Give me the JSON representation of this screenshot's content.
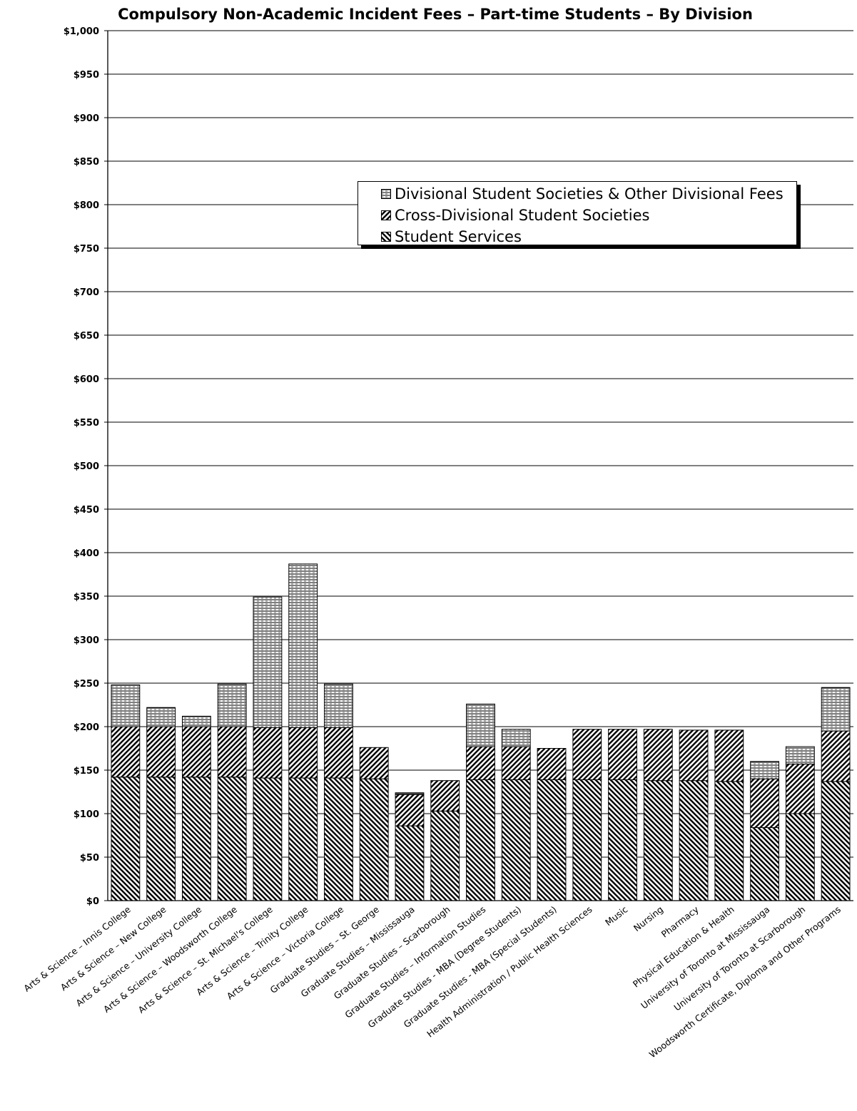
{
  "chart_data": {
    "type": "bar",
    "stacked": true,
    "title": "Compulsory Non-Academic Incident Fees – Part-time Students – By Division",
    "xlabel": "",
    "ylabel": "",
    "ylim": [
      0,
      1000
    ],
    "yticks": [
      "$0",
      "$50",
      "$100",
      "$150",
      "$200",
      "$250",
      "$300",
      "$350",
      "$400",
      "$450",
      "$500",
      "$550",
      "$600",
      "$650",
      "$700",
      "$750",
      "$800",
      "$850",
      "$900",
      "$950",
      "$1,000"
    ],
    "grid": true,
    "legend_position": "upper-right",
    "categories": [
      "Arts & Science – Innis College",
      "Arts & Science – New College",
      "Arts & Science – University College",
      "Arts & Science – Woodsworth College",
      "Arts & Science – St. Michael's College",
      "Arts & Science – Trinity College",
      "Arts & Science – Victoria College",
      "Graduate Studies – St. George",
      "Graduate Studies – Mississauga",
      "Graduate Studies – Scarborough",
      "Graduate Studies – Information Studies",
      "Graduate Studies - MBA (Degree Students)",
      "Graduate Studies - MBA (Special Students)",
      "Health Administration / Public Health Sciences",
      "Music",
      "Nursing",
      "Pharmacy",
      "Physical Education & Health",
      "University of Toronto at Mississauga",
      "University of Toronto at Scarborough",
      "Woodsworth Certificate, Diploma and Other Programs"
    ],
    "series": [
      {
        "name": "Student Services",
        "pattern": "diag-down",
        "values": [
          142,
          142,
          142,
          142,
          141,
          141,
          141,
          140,
          86,
          103,
          139,
          139,
          139,
          139,
          139,
          138,
          138,
          137,
          84,
          100,
          137
        ]
      },
      {
        "name": "Cross-Divisional Student Societies",
        "pattern": "diag-up",
        "values": [
          58,
          58,
          58,
          58,
          58,
          58,
          58,
          36,
          36,
          35,
          38,
          38,
          36,
          58,
          58,
          59,
          58,
          59,
          56,
          57,
          58
        ]
      },
      {
        "name": "Divisional Student Societies & Other Divisional Fees",
        "pattern": "horizontal",
        "values": [
          48,
          22,
          12,
          49,
          150,
          188,
          50,
          0,
          2,
          0,
          49,
          20,
          0,
          0,
          0,
          0,
          0,
          0,
          20,
          20,
          50
        ]
      }
    ]
  }
}
